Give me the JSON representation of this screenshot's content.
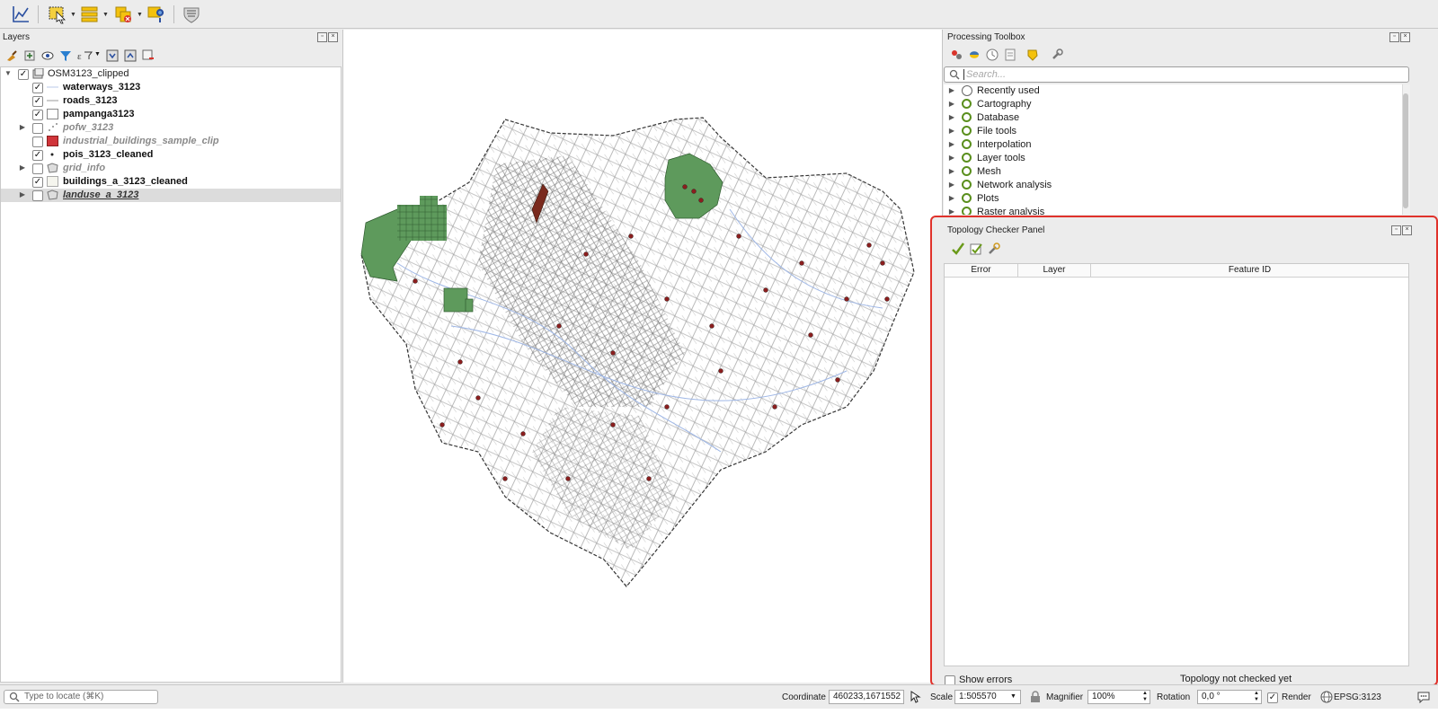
{
  "layers": {
    "title": "Layers",
    "items": [
      {
        "name": "OSM3123_clipped",
        "checked": true,
        "style": "group"
      },
      {
        "name": "waterways_3123",
        "checked": true,
        "style": "bold"
      },
      {
        "name": "roads_3123",
        "checked": true,
        "style": "bold"
      },
      {
        "name": "pampanga3123",
        "checked": true,
        "style": "bold"
      },
      {
        "name": "pofw_3123",
        "checked": false,
        "style": "off"
      },
      {
        "name": "industrial_buildings_sample_clip",
        "checked": false,
        "style": "off"
      },
      {
        "name": "pois_3123_cleaned",
        "checked": true,
        "style": "bold"
      },
      {
        "name": "grid_info",
        "checked": false,
        "style": "off"
      },
      {
        "name": "buildings_a_3123_cleaned",
        "checked": true,
        "style": "bold"
      },
      {
        "name": "landuse_a_3123",
        "checked": false,
        "style": "off"
      }
    ]
  },
  "processing": {
    "title": "Processing Toolbox",
    "search_placeholder": "Search...",
    "items": [
      "Recently used",
      "Cartography",
      "Database",
      "File tools",
      "Interpolation",
      "Layer tools",
      "Mesh",
      "Network analysis",
      "Plots",
      "Raster analysis"
    ]
  },
  "topology": {
    "title": "Topology Checker Panel",
    "columns": [
      "Error",
      "Layer",
      "Feature ID"
    ],
    "show_errors_label": "Show errors",
    "status": "Topology not checked yet"
  },
  "statusbar": {
    "locate_placeholder": "Type to locate (⌘K)",
    "coordinate_label": "Coordinate",
    "coordinate_value": "460233,1671552",
    "scale_label": "Scale",
    "scale_value": "1:505570",
    "magnifier_label": "Magnifier",
    "magnifier_value": "100%",
    "rotation_label": "Rotation",
    "rotation_value": "0,0 °",
    "render_label": "Render",
    "crs": "EPSG:3123"
  },
  "colors": {
    "highlight_border": "#e0322b",
    "landuse_green": "#5e9a5c",
    "poi_red": "#8b1e1e",
    "qgis_green": "#5a8f1d"
  }
}
